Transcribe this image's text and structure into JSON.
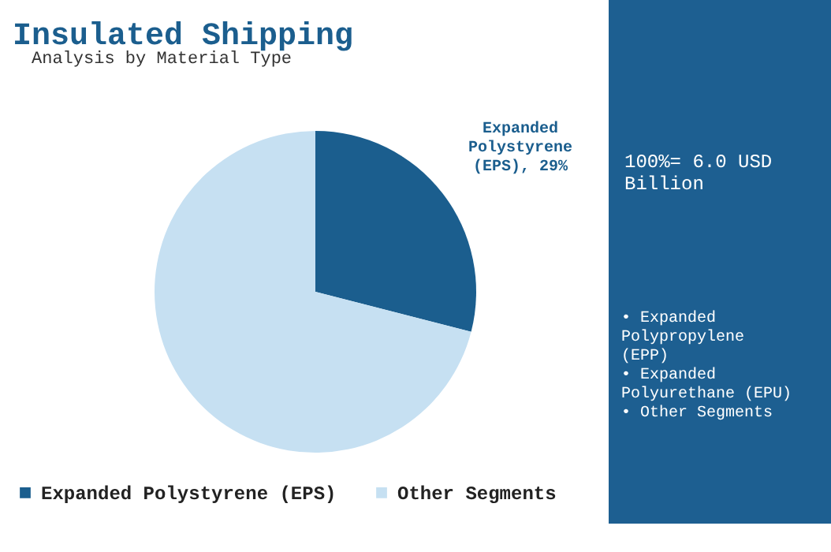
{
  "chart_data": {
    "type": "pie",
    "title": "Insulated Shipping",
    "subtitle": "Analysis by Material Type",
    "categories": [
      "Expanded Polystyrene (EPS)",
      "Other Segments"
    ],
    "values": [
      29,
      71
    ],
    "colors": [
      "#1b5e8e",
      "#c6e0f2"
    ],
    "value_labels": [
      "Expanded Polystyrene (EPS), 29%",
      null
    ],
    "legend": "bottom",
    "annotations": [
      "100%= 6.0 USD Billion",
      "• Expanded Polypropylene (EPP)",
      "• Expanded Polyurethane (EPU)",
      "• Other Segments"
    ]
  }
}
